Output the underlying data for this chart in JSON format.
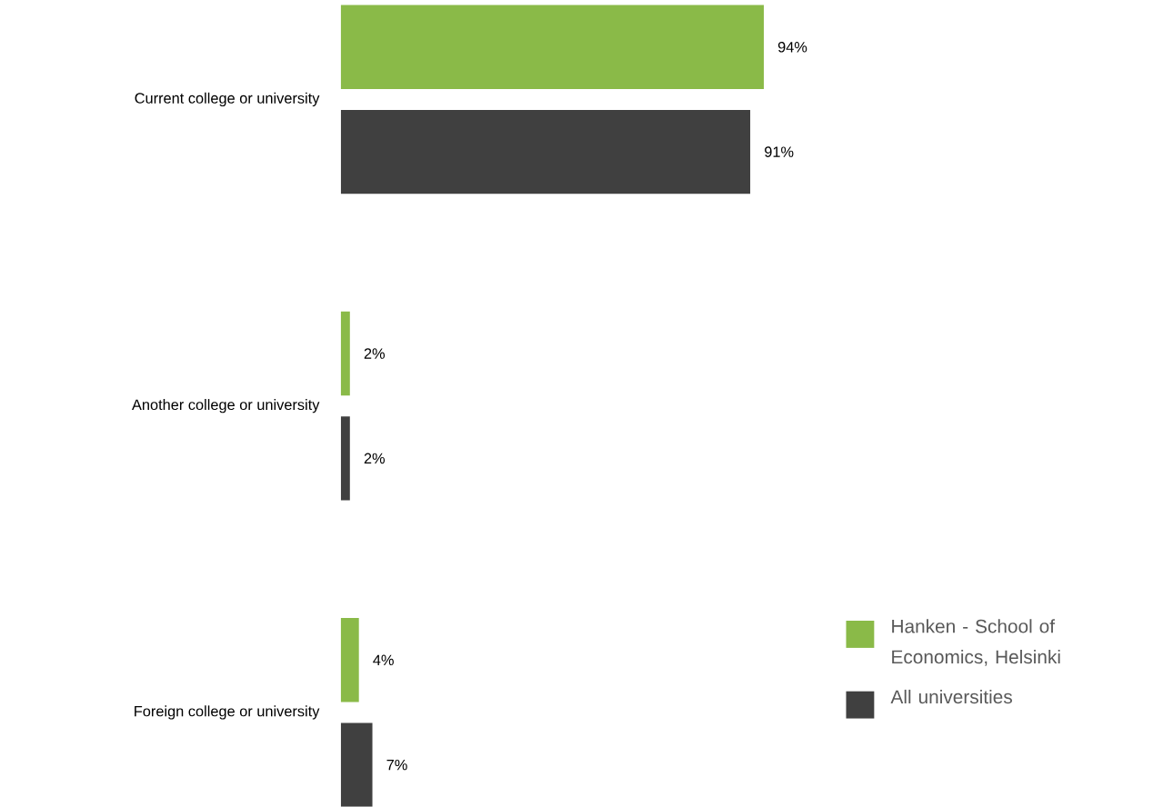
{
  "chart_data": {
    "type": "bar",
    "orientation": "horizontal",
    "categories": [
      "Current college or university",
      "Another college or university",
      "Foreign college or university"
    ],
    "series": [
      {
        "name": "Hanken - School of Economics, Helsinki",
        "color": "#8aba48",
        "values": [
          94,
          2,
          4
        ],
        "value_labels": [
          "94%",
          "2%",
          "4%"
        ]
      },
      {
        "name": "All universities",
        "color": "#404040",
        "values": [
          91,
          2,
          7
        ],
        "value_labels": [
          "91%",
          "2%",
          "7%"
        ]
      }
    ],
    "legend": "bottom right"
  }
}
